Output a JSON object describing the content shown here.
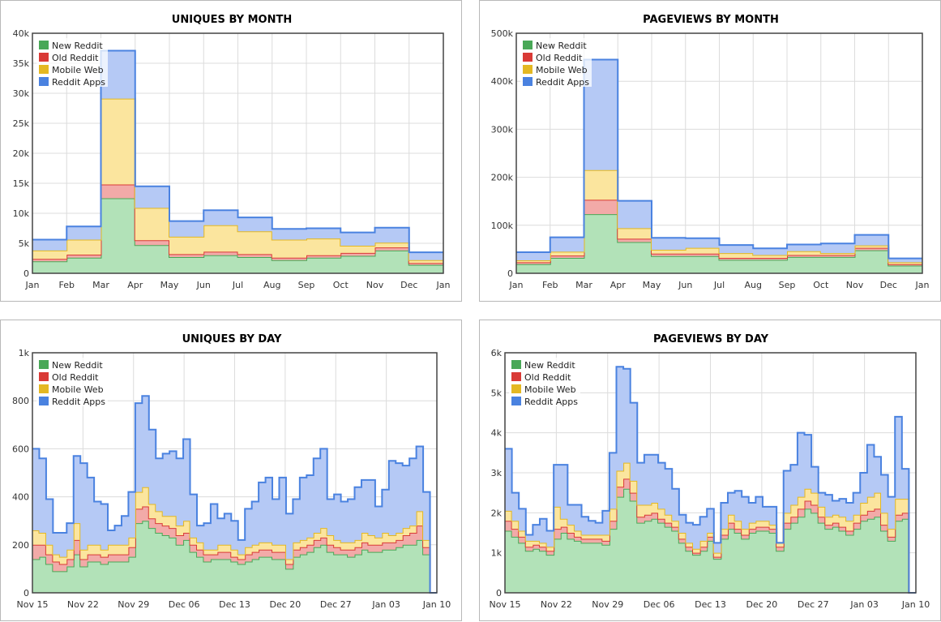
{
  "colors": {
    "new_reddit": {
      "fill": "#b2e2b8",
      "stroke": "#49a857"
    },
    "old_reddit": {
      "fill": "#f2aaa8",
      "stroke": "#d93a36"
    },
    "mobile_web": {
      "fill": "#fbe59e",
      "stroke": "#e4b822"
    },
    "reddit_apps": {
      "fill": "#b5c9f5",
      "stroke": "#4a82e0"
    }
  },
  "chart_data": [
    {
      "id": "uniques-by-month",
      "type": "area",
      "stacked": true,
      "step": true,
      "title": "UNIQUES BY MONTH",
      "x_tick_labels": [
        "Jan",
        "Feb",
        "Mar",
        "Apr",
        "May",
        "Jun",
        "Jul",
        "Aug",
        "Sep",
        "Oct",
        "Nov",
        "Dec",
        "Jan"
      ],
      "y_ticks": [
        0,
        5000,
        10000,
        15000,
        20000,
        25000,
        30000,
        35000,
        40000
      ],
      "y_tick_labels": [
        "0",
        "5k",
        "10k",
        "15k",
        "20k",
        "25k",
        "30k",
        "35k",
        "40k"
      ],
      "ylim": [
        0,
        40000
      ],
      "legend": [
        "New Reddit",
        "Old Reddit",
        "Mobile Web",
        "Reddit Apps"
      ],
      "legend_position": "top-left",
      "grid": true,
      "series": [
        {
          "name": "New Reddit",
          "values": [
            2000,
            2600,
            12500,
            4700,
            2700,
            3000,
            2700,
            2200,
            2600,
            2900,
            3800,
            1400
          ]
        },
        {
          "name": "Old Reddit",
          "values": [
            400,
            500,
            2300,
            800,
            500,
            600,
            500,
            400,
            400,
            500,
            500,
            300
          ]
        },
        {
          "name": "Mobile Web",
          "values": [
            1400,
            2500,
            14300,
            5400,
            2900,
            4400,
            3800,
            3000,
            2800,
            1200,
            800,
            500
          ]
        },
        {
          "name": "Reddit Apps",
          "values": [
            1800,
            2200,
            8000,
            3600,
            2600,
            2500,
            2300,
            1800,
            1700,
            2200,
            2500,
            1300
          ]
        }
      ]
    },
    {
      "id": "pageviews-by-month",
      "type": "area",
      "stacked": true,
      "step": true,
      "title": "PAGEVIEWS BY MONTH",
      "x_tick_labels": [
        "Jan",
        "Feb",
        "Mar",
        "Apr",
        "May",
        "Jun",
        "Jul",
        "Aug",
        "Sep",
        "Oct",
        "Nov",
        "Dec",
        "Jan"
      ],
      "y_ticks": [
        0,
        100000,
        200000,
        300000,
        400000,
        500000
      ],
      "y_tick_labels": [
        "0",
        "100k",
        "200k",
        "300k",
        "400k",
        "500k"
      ],
      "ylim": [
        0,
        500000
      ],
      "legend": [
        "New Reddit",
        "Old Reddit",
        "Mobile Web",
        "Reddit Apps"
      ],
      "legend_position": "top-left",
      "grid": true,
      "series": [
        {
          "name": "New Reddit",
          "values": [
            19000,
            32000,
            123000,
            65000,
            36000,
            36000,
            28000,
            28000,
            34000,
            34000,
            48000,
            16000
          ]
        },
        {
          "name": "Old Reddit",
          "values": [
            4000,
            5000,
            30000,
            7000,
            5000,
            5000,
            4000,
            4000,
            4000,
            4000,
            5000,
            3000
          ]
        },
        {
          "name": "Mobile Web",
          "values": [
            4000,
            8000,
            62000,
            22000,
            8000,
            12000,
            10000,
            6000,
            8000,
            4000,
            5000,
            4000
          ]
        },
        {
          "name": "Reddit Apps",
          "values": [
            17000,
            30000,
            230000,
            57000,
            25000,
            20000,
            17000,
            14000,
            14000,
            20000,
            22000,
            8000
          ]
        }
      ]
    },
    {
      "id": "uniques-by-day",
      "type": "area",
      "stacked": true,
      "step": true,
      "title": "UNIQUES BY DAY",
      "x_tick_labels": [
        "Nov 15",
        "Nov 22",
        "Nov 29",
        "Dec 06",
        "Dec 13",
        "Dec 20",
        "Dec 27",
        "Jan 03",
        "Jan 10"
      ],
      "y_ticks": [
        0,
        200,
        400,
        600,
        800,
        1000
      ],
      "y_tick_labels": [
        "0",
        "200",
        "400",
        "600",
        "800",
        "1k"
      ],
      "ylim": [
        0,
        1000
      ],
      "legend": [
        "New Reddit",
        "Old Reddit",
        "Mobile Web",
        "Reddit Apps"
      ],
      "legend_position": "top-left",
      "grid": true,
      "series": [
        {
          "name": "New Reddit",
          "values": [
            140,
            150,
            120,
            90,
            90,
            110,
            160,
            110,
            130,
            130,
            120,
            130,
            130,
            130,
            150,
            290,
            300,
            270,
            250,
            240,
            230,
            200,
            220,
            170,
            150,
            130,
            140,
            140,
            140,
            130,
            120,
            130,
            140,
            150,
            150,
            140,
            140,
            100,
            150,
            160,
            170,
            190,
            200,
            170,
            160,
            160,
            150,
            160,
            180,
            170,
            170,
            180,
            180,
            190,
            200,
            200,
            220,
            160,
            0
          ]
        },
        {
          "name": "Old Reddit",
          "values": [
            60,
            50,
            40,
            40,
            30,
            30,
            60,
            30,
            30,
            30,
            30,
            30,
            30,
            30,
            40,
            60,
            60,
            40,
            40,
            40,
            40,
            40,
            30,
            30,
            30,
            30,
            20,
            30,
            30,
            20,
            20,
            30,
            30,
            30,
            30,
            30,
            30,
            20,
            30,
            30,
            30,
            30,
            30,
            30,
            30,
            20,
            30,
            30,
            30,
            30,
            30,
            30,
            30,
            30,
            40,
            50,
            60,
            30,
            0
          ]
        },
        {
          "name": "Mobile Web",
          "values": [
            60,
            50,
            40,
            30,
            30,
            40,
            70,
            40,
            40,
            40,
            30,
            40,
            40,
            40,
            40,
            70,
            80,
            60,
            50,
            40,
            50,
            40,
            50,
            30,
            30,
            20,
            20,
            30,
            30,
            30,
            20,
            30,
            30,
            30,
            30,
            30,
            30,
            20,
            30,
            30,
            30,
            30,
            40,
            40,
            30,
            30,
            30,
            30,
            40,
            40,
            30,
            40,
            30,
            30,
            30,
            30,
            60,
            30,
            0
          ]
        },
        {
          "name": "Reddit Apps",
          "values": [
            340,
            310,
            190,
            90,
            100,
            110,
            280,
            360,
            280,
            180,
            190,
            60,
            80,
            120,
            190,
            370,
            380,
            310,
            220,
            260,
            270,
            280,
            340,
            180,
            70,
            110,
            190,
            110,
            130,
            120,
            60,
            160,
            180,
            250,
            270,
            190,
            280,
            190,
            180,
            260,
            260,
            310,
            330,
            150,
            190,
            170,
            180,
            220,
            220,
            230,
            130,
            180,
            310,
            290,
            260,
            280,
            270,
            200,
            0
          ]
        }
      ]
    },
    {
      "id": "pageviews-by-day",
      "type": "area",
      "stacked": true,
      "step": true,
      "title": "PAGEVIEWS BY DAY",
      "x_tick_labels": [
        "Nov 15",
        "Nov 22",
        "Nov 29",
        "Dec 06",
        "Dec 13",
        "Dec 20",
        "Dec 27",
        "Jan 03",
        "Jan 10"
      ],
      "y_ticks": [
        0,
        1000,
        2000,
        3000,
        4000,
        5000,
        6000
      ],
      "y_tick_labels": [
        "0",
        "1k",
        "2k",
        "3k",
        "4k",
        "5k",
        "6k"
      ],
      "ylim": [
        0,
        6000
      ],
      "legend": [
        "New Reddit",
        "Old Reddit",
        "Mobile Web",
        "Reddit Apps"
      ],
      "legend_position": "top-left",
      "grid": true,
      "series": [
        {
          "name": "New Reddit",
          "values": [
            1550,
            1400,
            1250,
            1050,
            1100,
            1050,
            950,
            1350,
            1500,
            1350,
            1300,
            1250,
            1250,
            1250,
            1200,
            1600,
            2400,
            2600,
            2300,
            1750,
            1800,
            1850,
            1750,
            1650,
            1550,
            1250,
            1050,
            950,
            1050,
            1300,
            850,
            1350,
            1600,
            1500,
            1350,
            1500,
            1550,
            1550,
            1500,
            1050,
            1600,
            1750,
            1900,
            2100,
            2000,
            1750,
            1600,
            1650,
            1550,
            1450,
            1600,
            1800,
            1850,
            1900,
            1550,
            1300,
            1800,
            1850,
            0
          ]
        },
        {
          "name": "Old Reddit",
          "values": [
            250,
            200,
            150,
            100,
            100,
            100,
            100,
            250,
            150,
            150,
            100,
            100,
            100,
            100,
            100,
            200,
            250,
            250,
            200,
            150,
            150,
            150,
            100,
            100,
            100,
            100,
            100,
            50,
            100,
            100,
            50,
            100,
            150,
            100,
            100,
            100,
            100,
            100,
            100,
            100,
            150,
            150,
            200,
            200,
            200,
            150,
            100,
            100,
            100,
            100,
            150,
            150,
            200,
            200,
            150,
            100,
            150,
            150,
            0
          ]
        },
        {
          "name": "Mobile Web",
          "values": [
            250,
            200,
            150,
            150,
            100,
            100,
            100,
            550,
            200,
            200,
            150,
            100,
            100,
            100,
            150,
            300,
            400,
            400,
            300,
            300,
            250,
            250,
            250,
            200,
            150,
            150,
            100,
            100,
            150,
            100,
            100,
            150,
            200,
            200,
            150,
            150,
            150,
            150,
            100,
            100,
            250,
            300,
            300,
            300,
            300,
            250,
            200,
            200,
            250,
            250,
            200,
            300,
            350,
            400,
            300,
            200,
            400,
            350,
            0
          ]
        },
        {
          "name": "Reddit Apps",
          "values": [
            1550,
            700,
            550,
            150,
            400,
            600,
            400,
            1050,
            1350,
            500,
            650,
            450,
            350,
            300,
            600,
            1400,
            2600,
            2350,
            1950,
            1050,
            1250,
            1200,
            1150,
            1150,
            800,
            450,
            500,
            600,
            600,
            600,
            250,
            650,
            550,
            750,
            800,
            500,
            600,
            350,
            450,
            0,
            1050,
            1000,
            1600,
            1350,
            650,
            350,
            550,
            350,
            450,
            450,
            550,
            750,
            1300,
            900,
            950,
            800,
            2050,
            750,
            0
          ]
        }
      ]
    }
  ]
}
